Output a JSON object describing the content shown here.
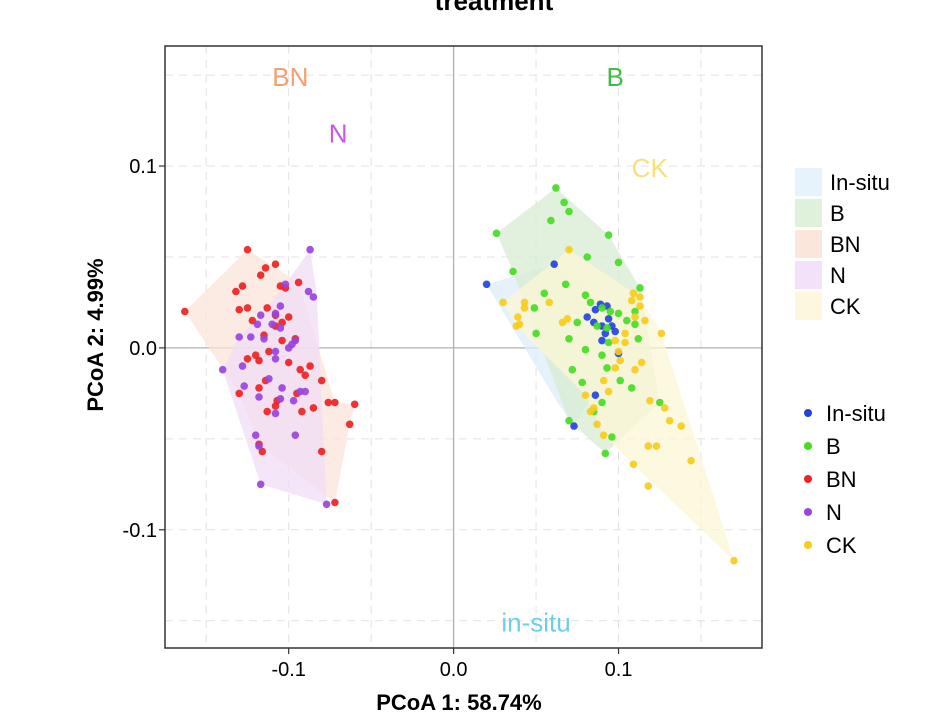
{
  "chart_data": {
    "type": "scatter",
    "title": "treatment",
    "xlabel": "PCoA 1: 58.74%",
    "ylabel": "PCoA 2: 4.99%",
    "xlim": [
      -0.175,
      0.187
    ],
    "ylim": [
      -0.165,
      0.166
    ],
    "x_ticks": [
      {
        "value": -0.1,
        "label": "-0.1"
      },
      {
        "value": 0.0,
        "label": "0.0"
      },
      {
        "value": 0.1,
        "label": "0.1"
      }
    ],
    "y_ticks": [
      {
        "value": 0.1,
        "label": "0.1"
      },
      {
        "value": 0.0,
        "label": "0.0"
      },
      {
        "value": -0.1,
        "label": "-0.1"
      }
    ],
    "grid": true,
    "series": [
      {
        "name": "In-situ",
        "color": "#2244dd",
        "fill": "#dcecfa",
        "points": [
          [
            0.02,
            0.035
          ],
          [
            0.061,
            0.046
          ],
          [
            0.081,
            0.017
          ],
          [
            0.086,
            0.021
          ],
          [
            0.089,
            0.024
          ],
          [
            0.093,
            0.023
          ],
          [
            0.085,
            0.014
          ],
          [
            0.096,
            0.012
          ],
          [
            0.092,
            0.008
          ],
          [
            0.09,
            0.004
          ],
          [
            0.098,
            0.009
          ],
          [
            0.086,
            -0.026
          ],
          [
            0.073,
            -0.043
          ],
          [
            0.1,
            -0.003
          ],
          [
            0.094,
            0.016
          ],
          [
            0.09,
            0.012
          ]
        ]
      },
      {
        "name": "B",
        "color": "#44dd22",
        "fill": "#d7ecd2",
        "points": [
          [
            0.062,
            0.088
          ],
          [
            0.067,
            0.08
          ],
          [
            0.07,
            0.075
          ],
          [
            0.059,
            0.07
          ],
          [
            0.094,
            0.062
          ],
          [
            0.081,
            0.05
          ],
          [
            0.1,
            0.047
          ],
          [
            0.026,
            0.063
          ],
          [
            0.036,
            0.042
          ],
          [
            0.055,
            0.03
          ],
          [
            0.049,
            0.022
          ],
          [
            0.068,
            0.035
          ],
          [
            0.08,
            0.029
          ],
          [
            0.083,
            0.025
          ],
          [
            0.09,
            0.022
          ],
          [
            0.095,
            0.02
          ],
          [
            0.1,
            0.019
          ],
          [
            0.11,
            0.02
          ],
          [
            0.113,
            0.033
          ],
          [
            0.075,
            0.014
          ],
          [
            0.087,
            0.012
          ],
          [
            0.093,
            0.011
          ],
          [
            0.105,
            0.015
          ],
          [
            0.11,
            0.013
          ],
          [
            0.112,
            0.005
          ],
          [
            0.094,
            0.003
          ],
          [
            0.05,
            0.008
          ],
          [
            0.07,
            0.005
          ],
          [
            0.08,
            -0.001
          ],
          [
            0.09,
            -0.004
          ],
          [
            0.093,
            -0.011
          ],
          [
            0.101,
            -0.018
          ],
          [
            0.108,
            -0.022
          ],
          [
            0.125,
            -0.03
          ],
          [
            0.078,
            -0.019
          ],
          [
            0.09,
            -0.03
          ],
          [
            0.085,
            -0.035
          ],
          [
            0.092,
            -0.058
          ],
          [
            0.096,
            -0.049
          ],
          [
            0.072,
            -0.012
          ],
          [
            0.07,
            -0.04
          ]
        ]
      },
      {
        "name": "BN",
        "color": "#ee2222",
        "fill": "#fbe4da",
        "points": [
          [
            -0.163,
            0.02
          ],
          [
            -0.125,
            0.054
          ],
          [
            -0.108,
            0.046
          ],
          [
            -0.114,
            0.044
          ],
          [
            -0.117,
            0.04
          ],
          [
            -0.128,
            0.034
          ],
          [
            -0.132,
            0.031
          ],
          [
            -0.105,
            0.034
          ],
          [
            -0.102,
            0.033
          ],
          [
            -0.094,
            0.036
          ],
          [
            -0.125,
            0.022
          ],
          [
            -0.113,
            0.022
          ],
          [
            -0.13,
            0.021
          ],
          [
            -0.108,
            0.018
          ],
          [
            -0.122,
            0.015
          ],
          [
            -0.104,
            0.014
          ],
          [
            -0.1,
            0.017
          ],
          [
            -0.108,
            0.012
          ],
          [
            -0.115,
            0.007
          ],
          [
            -0.104,
            0.004
          ],
          [
            -0.112,
            -0.002
          ],
          [
            -0.125,
            -0.006
          ],
          [
            -0.118,
            -0.007
          ],
          [
            -0.1,
            -0.008
          ],
          [
            -0.093,
            -0.012
          ],
          [
            -0.087,
            -0.01
          ],
          [
            -0.09,
            -0.015
          ],
          [
            -0.08,
            -0.018
          ],
          [
            -0.114,
            -0.018
          ],
          [
            -0.13,
            -0.025
          ],
          [
            -0.118,
            -0.022
          ],
          [
            -0.095,
            -0.025
          ],
          [
            -0.107,
            -0.029
          ],
          [
            -0.108,
            -0.032
          ],
          [
            -0.092,
            -0.035
          ],
          [
            -0.085,
            -0.033
          ],
          [
            -0.113,
            -0.035
          ],
          [
            -0.072,
            -0.03
          ],
          [
            -0.06,
            -0.031
          ],
          [
            -0.063,
            -0.042
          ],
          [
            -0.118,
            -0.053
          ],
          [
            -0.116,
            -0.057
          ],
          [
            -0.08,
            -0.057
          ],
          [
            -0.072,
            -0.085
          ],
          [
            -0.076,
            -0.03
          ],
          [
            -0.096,
            0.005
          ],
          [
            -0.12,
            -0.004
          ]
        ]
      },
      {
        "name": "N",
        "color": "#9944dd",
        "fill": "#f0dcf6",
        "points": [
          [
            -0.087,
            0.054
          ],
          [
            -0.088,
            0.031
          ],
          [
            -0.085,
            0.028
          ],
          [
            -0.102,
            0.035
          ],
          [
            -0.105,
            0.023
          ],
          [
            -0.108,
            0.019
          ],
          [
            -0.117,
            0.018
          ],
          [
            -0.119,
            0.013
          ],
          [
            -0.11,
            0.013
          ],
          [
            -0.105,
            0.011
          ],
          [
            -0.13,
            0.006
          ],
          [
            -0.123,
            0.006
          ],
          [
            -0.115,
            0.005
          ],
          [
            -0.1,
            0.0
          ],
          [
            -0.098,
            0.002
          ],
          [
            -0.096,
            0.004
          ],
          [
            -0.108,
            -0.002
          ],
          [
            -0.108,
            -0.006
          ],
          [
            -0.128,
            -0.01
          ],
          [
            -0.14,
            -0.012
          ],
          [
            -0.104,
            -0.022
          ],
          [
            -0.093,
            -0.024
          ],
          [
            -0.09,
            -0.024
          ],
          [
            -0.112,
            -0.017
          ],
          [
            -0.097,
            -0.029
          ],
          [
            -0.118,
            -0.027
          ],
          [
            -0.127,
            -0.021
          ],
          [
            -0.108,
            -0.036
          ],
          [
            -0.105,
            -0.028
          ],
          [
            -0.12,
            -0.048
          ],
          [
            -0.118,
            -0.054
          ],
          [
            -0.096,
            -0.048
          ],
          [
            -0.117,
            -0.075
          ],
          [
            -0.077,
            -0.086
          ]
        ]
      },
      {
        "name": "CK",
        "color": "#f6cc1c",
        "fill": "#fcf5d6",
        "points": [
          [
            0.07,
            0.054
          ],
          [
            0.03,
            0.025
          ],
          [
            0.043,
            0.025
          ],
          [
            0.058,
            0.025
          ],
          [
            0.039,
            0.017
          ],
          [
            0.043,
            0.022
          ],
          [
            0.038,
            0.012
          ],
          [
            0.04,
            0.013
          ],
          [
            0.066,
            0.014
          ],
          [
            0.069,
            0.016
          ],
          [
            0.108,
            0.026
          ],
          [
            0.113,
            0.028
          ],
          [
            0.109,
            0.03
          ],
          [
            0.113,
            0.023
          ],
          [
            0.11,
            0.017
          ],
          [
            0.116,
            0.015
          ],
          [
            0.104,
            0.008
          ],
          [
            0.126,
            0.008
          ],
          [
            0.104,
            0.003
          ],
          [
            0.1,
            -0.002
          ],
          [
            0.101,
            -0.007
          ],
          [
            0.098,
            -0.011
          ],
          [
            0.091,
            -0.018
          ],
          [
            0.094,
            -0.024
          ],
          [
            0.08,
            -0.026
          ],
          [
            0.083,
            -0.035
          ],
          [
            0.087,
            -0.042
          ],
          [
            0.091,
            -0.048
          ],
          [
            0.085,
            -0.033
          ],
          [
            0.119,
            -0.029
          ],
          [
            0.128,
            -0.033
          ],
          [
            0.131,
            -0.04
          ],
          [
            0.138,
            -0.043
          ],
          [
            0.118,
            -0.054
          ],
          [
            0.123,
            -0.054
          ],
          [
            0.109,
            -0.064
          ],
          [
            0.118,
            -0.076
          ],
          [
            0.144,
            -0.062
          ],
          [
            0.114,
            -0.008
          ],
          [
            0.17,
            -0.117
          ],
          [
            0.098,
            0.004
          ],
          [
            0.11,
            -0.012
          ]
        ]
      }
    ],
    "hulls": [
      {
        "name": "In-situ",
        "polygon": [
          [
            0.02,
            0.035
          ],
          [
            0.061,
            0.046
          ],
          [
            0.094,
            0.023
          ],
          [
            0.1,
            -0.003
          ],
          [
            0.073,
            -0.043
          ],
          [
            0.063,
            -0.03
          ]
        ]
      },
      {
        "name": "B",
        "polygon": [
          [
            0.026,
            0.063
          ],
          [
            0.062,
            0.088
          ],
          [
            0.094,
            0.062
          ],
          [
            0.113,
            0.033
          ],
          [
            0.125,
            -0.03
          ],
          [
            0.092,
            -0.058
          ],
          [
            0.07,
            -0.04
          ],
          [
            0.036,
            0.042
          ]
        ]
      },
      {
        "name": "BN",
        "polygon": [
          [
            -0.163,
            0.02
          ],
          [
            -0.125,
            0.054
          ],
          [
            -0.094,
            0.036
          ],
          [
            -0.072,
            -0.03
          ],
          [
            -0.06,
            -0.031
          ],
          [
            -0.063,
            -0.042
          ],
          [
            -0.072,
            -0.085
          ],
          [
            -0.118,
            -0.053
          ],
          [
            -0.13,
            -0.025
          ]
        ]
      },
      {
        "name": "N",
        "polygon": [
          [
            -0.087,
            0.054
          ],
          [
            -0.083,
            0.03
          ],
          [
            -0.077,
            -0.086
          ],
          [
            -0.117,
            -0.075
          ],
          [
            -0.14,
            -0.012
          ],
          [
            -0.13,
            0.006
          ],
          [
            -0.117,
            0.018
          ],
          [
            -0.102,
            0.035
          ]
        ]
      },
      {
        "name": "CK",
        "polygon": [
          [
            0.03,
            0.025
          ],
          [
            0.07,
            0.054
          ],
          [
            0.113,
            0.028
          ],
          [
            0.126,
            0.008
          ],
          [
            0.17,
            -0.117
          ],
          [
            0.109,
            -0.064
          ],
          [
            0.091,
            -0.048
          ],
          [
            0.08,
            -0.026
          ],
          [
            0.038,
            0.012
          ]
        ]
      }
    ],
    "annotations": [
      {
        "text": "BN",
        "x": -0.099,
        "y": 0.149,
        "color": "#f4a072"
      },
      {
        "text": "B",
        "x": 0.098,
        "y": 0.149,
        "color": "#44bb44"
      },
      {
        "text": "N",
        "x": -0.07,
        "y": 0.118,
        "color": "#cc55ee"
      },
      {
        "text": "CK",
        "x": 0.119,
        "y": 0.099,
        "color": "#f6e07a"
      },
      {
        "text": "in-situ",
        "x": 0.05,
        "y": -0.151,
        "color": "#6ecdee"
      }
    ],
    "legend_fill": {
      "position": "right",
      "items": [
        {
          "label": "In-situ",
          "color": "#e6f3fc"
        },
        {
          "label": "B",
          "color": "#dff1da"
        },
        {
          "label": "BN",
          "color": "#fbe6dc"
        },
        {
          "label": "N",
          "color": "#f3e0f9"
        },
        {
          "label": "CK",
          "color": "#fdf7dd"
        }
      ]
    },
    "legend_points": {
      "position": "right",
      "items": [
        {
          "label": "In-situ",
          "color": "#2244dd"
        },
        {
          "label": "B",
          "color": "#44dd22"
        },
        {
          "label": "BN",
          "color": "#ee2222"
        },
        {
          "label": "N",
          "color": "#9944dd"
        },
        {
          "label": "CK",
          "color": "#f6cc1c"
        }
      ]
    }
  }
}
